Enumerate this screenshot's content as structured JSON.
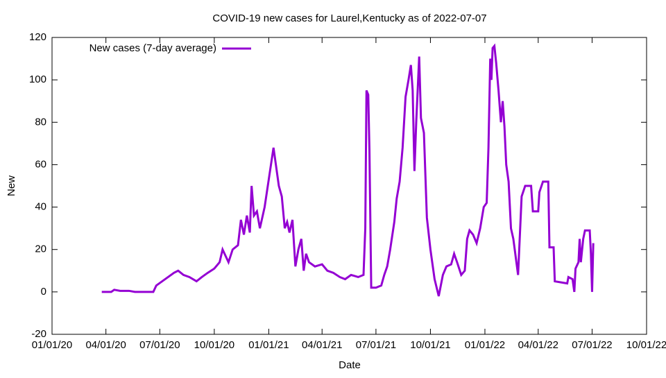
{
  "chart_data": {
    "type": "line",
    "title": "COVID-19 new cases for Laurel,Kentucky as of 2022-07-07",
    "x_label": "Date",
    "y_label": "New",
    "x": [
      "2020-03-25",
      "2020-04-10",
      "2020-04-15",
      "2020-04-25",
      "2020-05-10",
      "2020-05-20",
      "2020-06-20",
      "2020-06-25",
      "2020-07-05",
      "2020-07-15",
      "2020-07-25",
      "2020-08-01",
      "2020-08-10",
      "2020-08-20",
      "2020-09-01",
      "2020-09-10",
      "2020-09-20",
      "2020-10-01",
      "2020-10-10",
      "2020-10-15",
      "2020-10-20",
      "2020-10-25",
      "2020-11-01",
      "2020-11-10",
      "2020-11-15",
      "2020-11-20",
      "2020-11-25",
      "2020-11-30",
      "2020-12-03",
      "2020-12-07",
      "2020-12-12",
      "2020-12-17",
      "2020-12-25",
      "2021-01-09",
      "2021-01-13",
      "2021-01-18",
      "2021-01-23",
      "2021-01-28",
      "2021-02-01",
      "2021-02-05",
      "2021-02-10",
      "2021-02-15",
      "2021-02-20",
      "2021-02-25",
      "2021-03-01",
      "2021-03-05",
      "2021-03-10",
      "2021-03-20",
      "2021-04-01",
      "2021-04-10",
      "2021-04-20",
      "2021-05-01",
      "2021-05-10",
      "2021-05-20",
      "2021-06-01",
      "2021-06-10",
      "2021-06-13",
      "2021-06-15",
      "2021-06-18",
      "2021-06-20",
      "2021-06-23",
      "2021-07-01",
      "2021-07-10",
      "2021-07-15",
      "2021-07-20",
      "2021-07-25",
      "2021-08-01",
      "2021-08-05",
      "2021-08-10",
      "2021-08-15",
      "2021-08-20",
      "2021-08-25",
      "2021-08-29",
      "2021-09-01",
      "2021-09-04",
      "2021-09-07",
      "2021-09-12",
      "2021-09-15",
      "2021-09-20",
      "2021-09-25",
      "2021-10-01",
      "2021-10-08",
      "2021-10-15",
      "2021-10-22",
      "2021-10-28",
      "2021-11-05",
      "2021-11-10",
      "2021-11-15",
      "2021-11-22",
      "2021-11-28",
      "2021-12-02",
      "2021-12-06",
      "2021-12-12",
      "2021-12-18",
      "2021-12-24",
      "2021-12-30",
      "2022-01-04",
      "2022-01-07",
      "2022-01-10",
      "2022-01-12",
      "2022-01-14",
      "2022-01-17",
      "2022-01-20",
      "2022-01-24",
      "2022-01-28",
      "2022-01-31",
      "2022-02-03",
      "2022-02-06",
      "2022-02-10",
      "2022-02-14",
      "2022-02-18",
      "2022-02-26",
      "2022-03-04",
      "2022-03-10",
      "2022-03-20",
      "2022-03-23",
      "2022-04-01",
      "2022-04-03",
      "2022-04-09",
      "2022-04-18",
      "2022-04-20",
      "2022-04-27",
      "2022-04-29",
      "2022-05-20",
      "2022-05-22",
      "2022-05-29",
      "2022-06-01",
      "2022-06-03",
      "2022-06-08",
      "2022-06-10",
      "2022-06-12",
      "2022-06-16",
      "2022-06-19",
      "2022-06-27",
      "2022-06-29",
      "2022-07-01",
      "2022-07-03"
    ],
    "series": [
      {
        "name": "New cases (7-day average)",
        "color": "#9400d3",
        "values": [
          0,
          0,
          1,
          0.5,
          0.5,
          0,
          0,
          3,
          5,
          7,
          9,
          10,
          8,
          7,
          5,
          7,
          9,
          11,
          14,
          20,
          17,
          14,
          20,
          22,
          34,
          27,
          36,
          28,
          50,
          36,
          38,
          30,
          40,
          68,
          60,
          50,
          45,
          30,
          33,
          28,
          34,
          12,
          20,
          25,
          10,
          18,
          14,
          12,
          13,
          10,
          9,
          7,
          6,
          8,
          7,
          8,
          30,
          95,
          93,
          67,
          2,
          2,
          3,
          8,
          12,
          20,
          33,
          44,
          52,
          68,
          92,
          100,
          107,
          95,
          57,
          80,
          111,
          82,
          75,
          35,
          20,
          6,
          -2,
          8,
          12,
          13,
          18,
          14,
          8,
          10,
          25,
          29,
          27,
          23,
          30,
          40,
          42,
          68,
          110,
          100,
          115,
          116,
          108,
          95,
          80,
          90,
          78,
          60,
          52,
          30,
          25,
          8,
          45,
          50,
          50,
          38,
          38,
          47,
          52,
          52,
          21,
          21,
          5,
          4,
          7,
          6,
          0,
          11,
          14,
          25,
          14,
          25,
          29,
          29,
          18,
          0,
          23
        ]
      }
    ],
    "xlim": [
      "2020-01-01",
      "2022-10-01"
    ],
    "xticks": [
      {
        "value": "2020-01-01",
        "label": "01/01/20"
      },
      {
        "value": "2020-04-01",
        "label": "04/01/20"
      },
      {
        "value": "2020-07-01",
        "label": "07/01/20"
      },
      {
        "value": "2020-10-01",
        "label": "10/01/20"
      },
      {
        "value": "2021-01-01",
        "label": "01/01/21"
      },
      {
        "value": "2021-04-01",
        "label": "04/01/21"
      },
      {
        "value": "2021-07-01",
        "label": "07/01/21"
      },
      {
        "value": "2021-10-01",
        "label": "10/01/21"
      },
      {
        "value": "2022-01-01",
        "label": "01/01/22"
      },
      {
        "value": "2022-04-01",
        "label": "04/01/22"
      },
      {
        "value": "2022-07-01",
        "label": "07/01/22"
      },
      {
        "value": "2022-10-01",
        "label": "10/01/22"
      }
    ],
    "ylim": [
      -20,
      120
    ],
    "yticks": [
      -20,
      0,
      20,
      40,
      60,
      80,
      100,
      120
    ],
    "legend": "top-left"
  }
}
